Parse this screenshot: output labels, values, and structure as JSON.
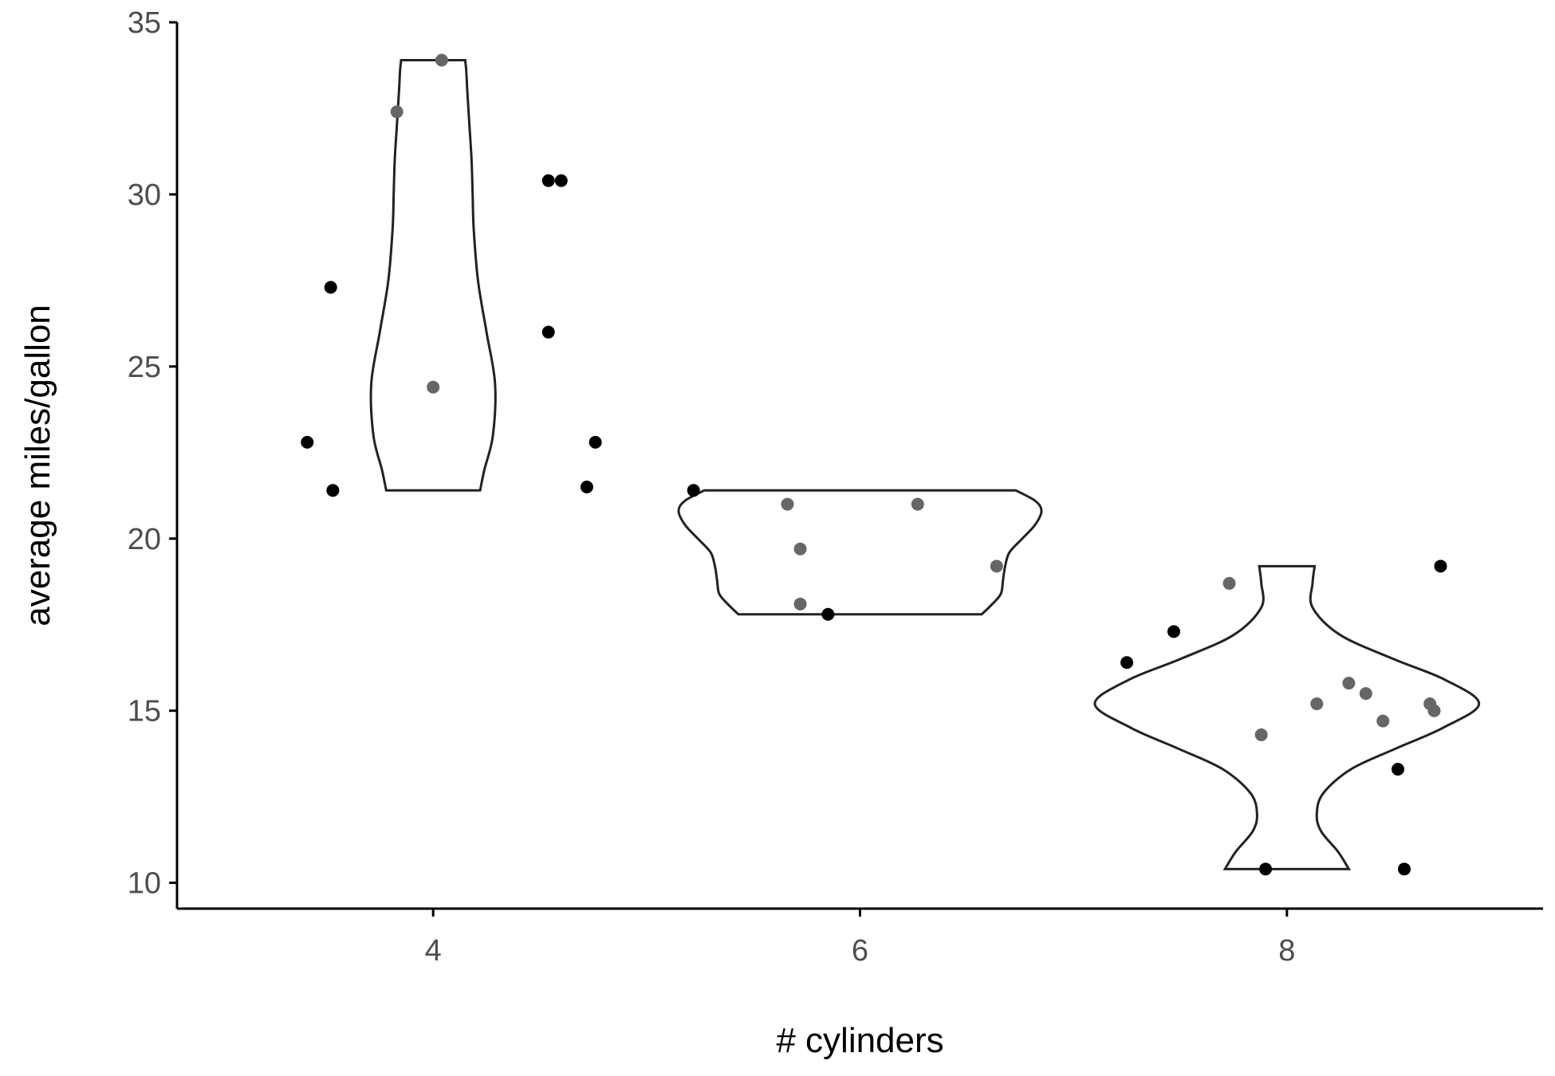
{
  "chart_data": {
    "type": "scatter",
    "overlay": "violin",
    "xlabel": "# cylinders",
    "ylabel": "average miles/gallon",
    "xlim": [
      2.8,
      9.2
    ],
    "ylim": [
      9.25,
      35
    ],
    "x_ticks": [
      4,
      6,
      8
    ],
    "y_ticks": [
      10,
      15,
      20,
      25,
      30,
      35
    ],
    "grid": false,
    "legend": "none",
    "colors": {
      "dark_point": "#000000",
      "light_point": "#666666",
      "violin_stroke": "#222222",
      "axis": "#000000",
      "tick_label": "#4d4d4d"
    },
    "violins": [
      {
        "group": 4,
        "min": 21.4,
        "max": 33.9,
        "profile": [
          [
            21.4,
            0.22
          ],
          [
            22.0,
            0.24
          ],
          [
            23.0,
            0.28
          ],
          [
            24.5,
            0.29
          ],
          [
            26.0,
            0.25
          ],
          [
            27.5,
            0.21
          ],
          [
            29.0,
            0.19
          ],
          [
            30.0,
            0.185
          ],
          [
            31.0,
            0.18
          ],
          [
            32.0,
            0.17
          ],
          [
            33.0,
            0.16
          ],
          [
            33.6,
            0.155
          ],
          [
            33.9,
            0.15
          ]
        ]
      },
      {
        "group": 6,
        "min": 17.8,
        "max": 21.4,
        "profile": [
          [
            17.8,
            0.57
          ],
          [
            18.1,
            0.62
          ],
          [
            18.4,
            0.66
          ],
          [
            18.8,
            0.67
          ],
          [
            19.2,
            0.68
          ],
          [
            19.6,
            0.7
          ],
          [
            20.0,
            0.76
          ],
          [
            20.4,
            0.82
          ],
          [
            20.8,
            0.85
          ],
          [
            21.1,
            0.82
          ],
          [
            21.4,
            0.73
          ]
        ]
      },
      {
        "group": 8,
        "min": 10.4,
        "max": 19.2,
        "profile": [
          [
            10.4,
            0.29
          ],
          [
            10.9,
            0.24
          ],
          [
            11.5,
            0.16
          ],
          [
            12.0,
            0.14
          ],
          [
            12.6,
            0.17
          ],
          [
            13.3,
            0.3
          ],
          [
            13.9,
            0.51
          ],
          [
            14.5,
            0.73
          ],
          [
            15.2,
            0.9
          ],
          [
            15.9,
            0.74
          ],
          [
            16.5,
            0.5
          ],
          [
            17.2,
            0.25
          ],
          [
            18.0,
            0.12
          ],
          [
            18.7,
            0.12
          ],
          [
            19.2,
            0.13
          ]
        ]
      }
    ],
    "points": [
      {
        "x": 3.41,
        "y": 22.8,
        "shade": "dark"
      },
      {
        "x": 3.53,
        "y": 21.4,
        "shade": "dark"
      },
      {
        "x": 3.52,
        "y": 27.3,
        "shade": "dark"
      },
      {
        "x": 3.83,
        "y": 32.4,
        "shade": "light"
      },
      {
        "x": 4.0,
        "y": 24.4,
        "shade": "light"
      },
      {
        "x": 4.04,
        "y": 33.9,
        "shade": "light"
      },
      {
        "x": 4.54,
        "y": 30.4,
        "shade": "dark"
      },
      {
        "x": 4.6,
        "y": 30.4,
        "shade": "dark"
      },
      {
        "x": 4.54,
        "y": 26.0,
        "shade": "dark"
      },
      {
        "x": 4.76,
        "y": 22.8,
        "shade": "dark"
      },
      {
        "x": 4.72,
        "y": 21.5,
        "shade": "dark"
      },
      {
        "x": 5.22,
        "y": 21.4,
        "shade": "dark"
      },
      {
        "x": 5.66,
        "y": 21.0,
        "shade": "light"
      },
      {
        "x": 5.72,
        "y": 19.7,
        "shade": "light"
      },
      {
        "x": 5.72,
        "y": 18.1,
        "shade": "light"
      },
      {
        "x": 5.85,
        "y": 17.8,
        "shade": "dark"
      },
      {
        "x": 6.27,
        "y": 21.0,
        "shade": "light"
      },
      {
        "x": 6.64,
        "y": 19.2,
        "shade": "light"
      },
      {
        "x": 7.25,
        "y": 16.4,
        "shade": "dark"
      },
      {
        "x": 7.47,
        "y": 17.3,
        "shade": "dark"
      },
      {
        "x": 7.73,
        "y": 18.7,
        "shade": "light"
      },
      {
        "x": 7.88,
        "y": 14.3,
        "shade": "light"
      },
      {
        "x": 7.9,
        "y": 10.4,
        "shade": "dark"
      },
      {
        "x": 8.14,
        "y": 15.2,
        "shade": "light"
      },
      {
        "x": 8.29,
        "y": 15.8,
        "shade": "light"
      },
      {
        "x": 8.37,
        "y": 15.5,
        "shade": "light"
      },
      {
        "x": 8.45,
        "y": 14.7,
        "shade": "light"
      },
      {
        "x": 8.52,
        "y": 13.3,
        "shade": "dark"
      },
      {
        "x": 8.55,
        "y": 10.4,
        "shade": "dark"
      },
      {
        "x": 8.67,
        "y": 15.2,
        "shade": "light"
      },
      {
        "x": 8.69,
        "y": 15.0,
        "shade": "light"
      },
      {
        "x": 8.72,
        "y": 19.2,
        "shade": "dark"
      }
    ]
  }
}
